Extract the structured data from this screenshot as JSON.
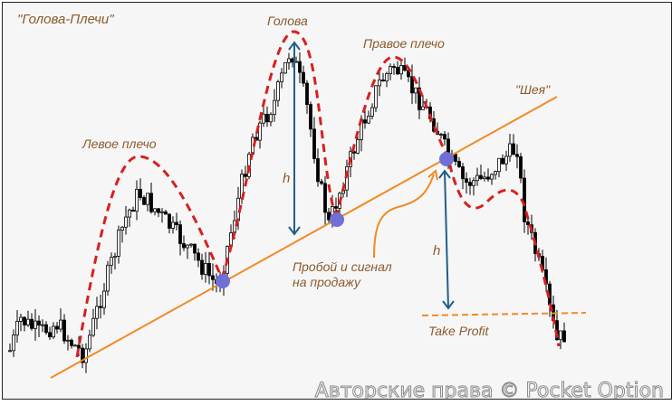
{
  "title": "\"Голова-Плечи\"",
  "labels": {
    "head": "Голова",
    "left_shoulder": "Левое плечо",
    "right_shoulder": "Правое плечо",
    "neckline": "\"Шея\"",
    "breakout_line1": "Пробой и сигнал",
    "breakout_line2": "на продажу",
    "height_marker": "h",
    "take_profit": "Take Profit"
  },
  "watermark": "Авторские права © Pocket Option",
  "colors": {
    "text": "#8a5a2e",
    "pattern_outline": "#d62020",
    "neckline": "#f08a24",
    "arrows": "#1f5f8b",
    "touch_points": "#6f6fd6",
    "candles": "#000000"
  }
}
